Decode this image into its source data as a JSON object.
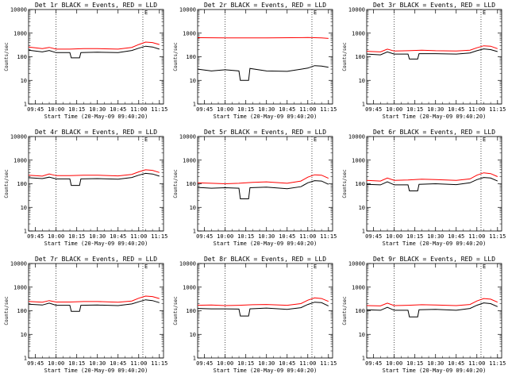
{
  "chart_data": [
    {
      "type": "line",
      "title": "Det 1r BLACK = Events, RED = LLD",
      "xlabel": "Start Time (20-May-09 09:40:20)",
      "ylabel": "Counts/sec",
      "yscale": "log",
      "ylim": [
        1,
        10000
      ],
      "xlim": [
        "09:40",
        "11:18"
      ],
      "xticks": [
        "09:45",
        "10:00",
        "10:15",
        "10:30",
        "10:45",
        "11:00",
        "11:15"
      ],
      "yticks": [
        "1",
        "10",
        "100",
        "1000",
        "10000"
      ],
      "vlines": [
        "10:00",
        "11:03"
      ],
      "marker": "E",
      "series": [
        {
          "color": "#ff0000",
          "x": [
            "09:40",
            "09:50",
            "09:55",
            "10:00",
            "10:10",
            "10:20",
            "10:30",
            "10:45",
            "10:55",
            "11:00",
            "11:05",
            "11:10",
            "11:15"
          ],
          "values": [
            260,
            220,
            250,
            210,
            210,
            220,
            220,
            210,
            250,
            330,
            420,
            400,
            330
          ]
        },
        {
          "color": "#000000",
          "x": [
            "09:40",
            "09:50",
            "09:55",
            "10:00",
            "10:10",
            "10:11",
            "10:17",
            "10:18",
            "10:30",
            "10:45",
            "10:55",
            "11:00",
            "11:05",
            "11:10",
            "11:15"
          ],
          "values": [
            190,
            160,
            185,
            150,
            150,
            90,
            90,
            150,
            155,
            150,
            185,
            230,
            280,
            260,
            210
          ]
        }
      ]
    },
    {
      "type": "line",
      "title": "Det 2r BLACK = Events, RED = LLD",
      "xlabel": "Start Time (20-May-09 09:40:20)",
      "ylabel": "Counts/sec",
      "yscale": "log",
      "ylim": [
        1,
        10000
      ],
      "xlim": [
        "09:40",
        "11:18"
      ],
      "xticks": [
        "09:45",
        "10:00",
        "10:15",
        "10:30",
        "10:45",
        "11:00",
        "11:15"
      ],
      "yticks": [
        "1",
        "10",
        "100",
        "1000",
        "10000"
      ],
      "vlines": [
        "10:00",
        "11:03"
      ],
      "marker": "E",
      "series": [
        {
          "color": "#ff0000",
          "x": [
            "09:40",
            "10:00",
            "10:30",
            "11:00",
            "11:05",
            "11:10",
            "11:15"
          ],
          "values": [
            640,
            630,
            630,
            650,
            640,
            630,
            600
          ]
        },
        {
          "color": "#000000",
          "x": [
            "09:40",
            "09:50",
            "10:00",
            "10:10",
            "10:11",
            "10:17",
            "10:18",
            "10:30",
            "10:45",
            "11:00",
            "11:05",
            "11:10",
            "11:15"
          ],
          "values": [
            30,
            25,
            28,
            25,
            10,
            10,
            32,
            25,
            24,
            33,
            42,
            40,
            36
          ]
        }
      ]
    },
    {
      "type": "line",
      "title": "Det 3r BLACK = Events, RED = LLD",
      "xlabel": "Start Time (20-May-09 09:40:20)",
      "ylabel": "Counts/sec",
      "yscale": "log",
      "ylim": [
        1,
        10000
      ],
      "xlim": [
        "09:40",
        "11:18"
      ],
      "xticks": [
        "09:45",
        "10:00",
        "10:15",
        "10:30",
        "10:45",
        "11:00",
        "11:15"
      ],
      "yticks": [
        "1",
        "10",
        "100",
        "1000",
        "10000"
      ],
      "vlines": [
        "10:00",
        "11:03"
      ],
      "marker": "E",
      "series": [
        {
          "color": "#ff0000",
          "x": [
            "09:40",
            "09:50",
            "09:55",
            "10:00",
            "10:10",
            "10:20",
            "10:30",
            "10:45",
            "10:55",
            "11:00",
            "11:05",
            "11:10",
            "11:15"
          ],
          "values": [
            170,
            160,
            210,
            175,
            180,
            190,
            180,
            175,
            190,
            240,
            290,
            280,
            220
          ]
        },
        {
          "color": "#000000",
          "x": [
            "09:40",
            "09:50",
            "09:55",
            "10:00",
            "10:10",
            "10:11",
            "10:17",
            "10:18",
            "10:30",
            "10:45",
            "10:55",
            "11:00",
            "11:05",
            "11:10",
            "11:15"
          ],
          "values": [
            130,
            120,
            160,
            130,
            130,
            80,
            80,
            135,
            135,
            130,
            145,
            180,
            215,
            200,
            165
          ]
        }
      ]
    },
    {
      "type": "line",
      "title": "Det 4r BLACK = Events, RED = LLD",
      "xlabel": "Start Time (20-May-09 09:40:20)",
      "ylabel": "Counts/sec",
      "yscale": "log",
      "ylim": [
        1,
        10000
      ],
      "xlim": [
        "09:40",
        "11:18"
      ],
      "xticks": [
        "09:45",
        "10:00",
        "10:15",
        "10:30",
        "10:45",
        "11:00",
        "11:15"
      ],
      "yticks": [
        "1",
        "10",
        "100",
        "1000",
        "10000"
      ],
      "vlines": [
        "10:00",
        "11:03"
      ],
      "marker": "E",
      "series": [
        {
          "color": "#ff0000",
          "x": [
            "09:40",
            "09:50",
            "09:55",
            "10:00",
            "10:10",
            "10:20",
            "10:30",
            "10:45",
            "10:55",
            "11:00",
            "11:05",
            "11:10",
            "11:15"
          ],
          "values": [
            230,
            210,
            260,
            220,
            220,
            230,
            230,
            215,
            250,
            320,
            390,
            370,
            300
          ]
        },
        {
          "color": "#000000",
          "x": [
            "09:40",
            "09:50",
            "09:55",
            "10:00",
            "10:10",
            "10:11",
            "10:17",
            "10:18",
            "10:30",
            "10:45",
            "10:55",
            "11:00",
            "11:05",
            "11:10",
            "11:15"
          ],
          "values": [
            180,
            165,
            190,
            160,
            160,
            85,
            85,
            160,
            165,
            155,
            185,
            230,
            275,
            260,
            210
          ]
        }
      ]
    },
    {
      "type": "line",
      "title": "Det 5r BLACK = Events, RED = LLD",
      "xlabel": "Start Time (20-May-09 09:40:20)",
      "ylabel": "Counts/sec",
      "yscale": "log",
      "ylim": [
        1,
        10000
      ],
      "xlim": [
        "09:40",
        "11:18"
      ],
      "xticks": [
        "09:45",
        "10:00",
        "10:15",
        "10:30",
        "10:45",
        "11:00",
        "11:15"
      ],
      "yticks": [
        "1",
        "10",
        "100",
        "1000",
        "10000"
      ],
      "vlines": [
        "10:00",
        "11:03"
      ],
      "marker": "E",
      "series": [
        {
          "color": "#ff0000",
          "x": [
            "09:40",
            "09:50",
            "10:00",
            "10:10",
            "10:20",
            "10:30",
            "10:45",
            "10:55",
            "11:00",
            "11:05",
            "11:10",
            "11:15"
          ],
          "values": [
            110,
            105,
            100,
            105,
            115,
            120,
            105,
            130,
            190,
            240,
            230,
            170
          ]
        },
        {
          "color": "#000000",
          "x": [
            "09:40",
            "09:50",
            "10:00",
            "10:10",
            "10:11",
            "10:17",
            "10:18",
            "10:30",
            "10:45",
            "10:55",
            "11:00",
            "11:05",
            "11:10",
            "11:15"
          ],
          "values": [
            70,
            65,
            68,
            65,
            23,
            23,
            68,
            72,
            62,
            75,
            110,
            135,
            130,
            95
          ]
        }
      ]
    },
    {
      "type": "line",
      "title": "Det 6r BLACK = Events, RED = LLD",
      "xlabel": "Start Time (20-May-09 09:40:20)",
      "ylabel": "Counts/sec",
      "yscale": "log",
      "ylim": [
        1,
        10000
      ],
      "xlim": [
        "09:40",
        "11:18"
      ],
      "xticks": [
        "09:45",
        "10:00",
        "10:15",
        "10:30",
        "10:45",
        "11:00",
        "11:15"
      ],
      "yticks": [
        "1",
        "10",
        "100",
        "1000",
        "10000"
      ],
      "vlines": [
        "10:00",
        "11:03"
      ],
      "marker": "E",
      "series": [
        {
          "color": "#ff0000",
          "x": [
            "09:40",
            "09:50",
            "09:55",
            "10:00",
            "10:10",
            "10:20",
            "10:30",
            "10:45",
            "10:55",
            "11:00",
            "11:05",
            "11:10",
            "11:15"
          ],
          "values": [
            140,
            130,
            175,
            140,
            145,
            155,
            150,
            140,
            160,
            230,
            290,
            270,
            200
          ]
        },
        {
          "color": "#000000",
          "x": [
            "09:40",
            "09:50",
            "09:55",
            "10:00",
            "10:10",
            "10:11",
            "10:17",
            "10:18",
            "10:30",
            "10:45",
            "10:55",
            "11:00",
            "11:05",
            "11:10",
            "11:15"
          ],
          "values": [
            95,
            90,
            120,
            90,
            90,
            50,
            50,
            95,
            100,
            92,
            110,
            150,
            185,
            175,
            130
          ]
        }
      ]
    },
    {
      "type": "line",
      "title": "Det 7r BLACK = Events, RED = LLD",
      "xlabel": "Start Time (20-May-09 09:40:20)",
      "ylabel": "Counts/sec",
      "yscale": "log",
      "ylim": [
        1,
        10000
      ],
      "xlim": [
        "09:40",
        "11:18"
      ],
      "xticks": [
        "09:45",
        "10:00",
        "10:15",
        "10:30",
        "10:45",
        "11:00",
        "11:15"
      ],
      "yticks": [
        "1",
        "10",
        "100",
        "1000",
        "10000"
      ],
      "vlines": [
        "10:00",
        "11:03"
      ],
      "marker": "E",
      "series": [
        {
          "color": "#ff0000",
          "x": [
            "09:40",
            "09:50",
            "09:55",
            "10:00",
            "10:10",
            "10:20",
            "10:30",
            "10:45",
            "10:55",
            "11:00",
            "11:05",
            "11:10",
            "11:15"
          ],
          "values": [
            250,
            230,
            270,
            235,
            235,
            245,
            245,
            230,
            260,
            340,
            420,
            400,
            330
          ]
        },
        {
          "color": "#000000",
          "x": [
            "09:40",
            "09:50",
            "09:55",
            "10:00",
            "10:10",
            "10:11",
            "10:17",
            "10:18",
            "10:30",
            "10:45",
            "10:55",
            "11:00",
            "11:05",
            "11:10",
            "11:15"
          ],
          "values": [
            190,
            175,
            210,
            170,
            170,
            95,
            95,
            170,
            175,
            165,
            195,
            240,
            290,
            270,
            220
          ]
        }
      ]
    },
    {
      "type": "line",
      "title": "Det 8r BLACK = Events, RED = LLD",
      "xlabel": "Start Time (20-May-09 09:40:20)",
      "ylabel": "Counts/sec",
      "yscale": "log",
      "ylim": [
        1,
        10000
      ],
      "xlim": [
        "09:40",
        "11:18"
      ],
      "xticks": [
        "09:45",
        "10:00",
        "10:15",
        "10:30",
        "10:45",
        "11:00",
        "11:15"
      ],
      "yticks": [
        "1",
        "10",
        "100",
        "1000",
        "10000"
      ],
      "vlines": [
        "10:00",
        "11:03"
      ],
      "marker": "E",
      "series": [
        {
          "color": "#ff0000",
          "x": [
            "09:40",
            "09:50",
            "10:00",
            "10:10",
            "10:20",
            "10:30",
            "10:45",
            "10:55",
            "11:00",
            "11:05",
            "11:10",
            "11:15"
          ],
          "values": [
            170,
            175,
            165,
            170,
            180,
            185,
            170,
            200,
            280,
            350,
            330,
            250
          ]
        },
        {
          "color": "#000000",
          "x": [
            "09:40",
            "09:50",
            "10:00",
            "10:10",
            "10:11",
            "10:17",
            "10:18",
            "10:30",
            "10:45",
            "10:55",
            "11:00",
            "11:05",
            "11:10",
            "11:15"
          ],
          "values": [
            125,
            120,
            120,
            118,
            60,
            60,
            120,
            130,
            115,
            135,
            185,
            230,
            220,
            160
          ]
        }
      ]
    },
    {
      "type": "line",
      "title": "Det 9r BLACK = Events, RED = LLD",
      "xlabel": "Start Time (20-May-09 09:40:20)",
      "ylabel": "Counts/sec",
      "yscale": "log",
      "ylim": [
        1,
        10000
      ],
      "xlim": [
        "09:40",
        "11:18"
      ],
      "xticks": [
        "09:45",
        "10:00",
        "10:15",
        "10:30",
        "10:45",
        "11:00",
        "11:15"
      ],
      "yticks": [
        "1",
        "10",
        "100",
        "1000",
        "10000"
      ],
      "vlines": [
        "10:00",
        "11:03"
      ],
      "marker": "E",
      "series": [
        {
          "color": "#ff0000",
          "x": [
            "09:40",
            "09:50",
            "09:55",
            "10:00",
            "10:10",
            "10:20",
            "10:30",
            "10:45",
            "10:55",
            "11:00",
            "11:05",
            "11:10",
            "11:15"
          ],
          "values": [
            165,
            160,
            210,
            165,
            170,
            180,
            175,
            165,
            185,
            260,
            330,
            310,
            230
          ]
        },
        {
          "color": "#000000",
          "x": [
            "09:40",
            "09:50",
            "09:55",
            "10:00",
            "10:10",
            "10:11",
            "10:17",
            "10:18",
            "10:30",
            "10:45",
            "10:55",
            "11:00",
            "11:05",
            "11:10",
            "11:15"
          ],
          "values": [
            110,
            105,
            140,
            105,
            105,
            55,
            55,
            110,
            115,
            105,
            125,
            170,
            215,
            200,
            150
          ]
        }
      ]
    }
  ]
}
